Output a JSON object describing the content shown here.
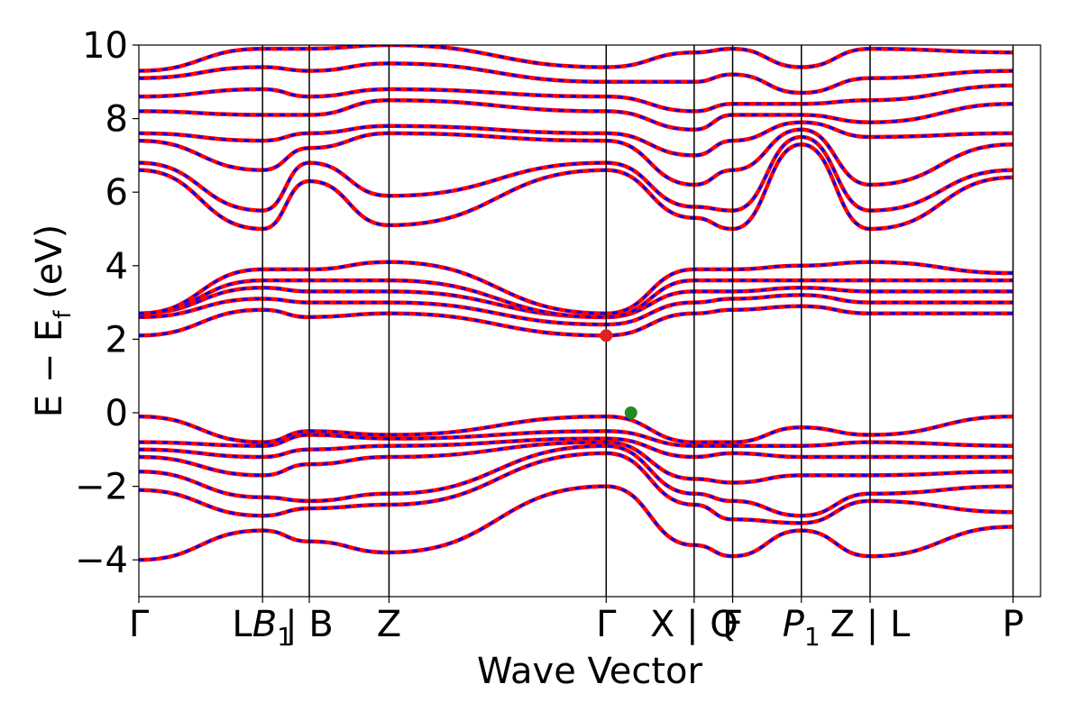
{
  "chart_data": {
    "type": "line",
    "xlabel": "Wave Vector",
    "ylabel": "E − E",
    "ylabel_sub": "f",
    "ylabel_unit": "(eV)",
    "ylim": [
      -5,
      10
    ],
    "y_ticks": [
      -4,
      -2,
      0,
      2,
      4,
      6,
      8,
      10
    ],
    "y_tick_labels": [
      "−4",
      "−2",
      "0",
      "2",
      "4",
      "6",
      "8",
      "10"
    ],
    "x_range": [
      0,
      3.28
    ],
    "kpoints": [
      {
        "x": 0.0,
        "label": "Γ"
      },
      {
        "x": 0.45,
        "label": "L|B",
        "main": "L",
        "italic": "B",
        "sub": "1"
      },
      {
        "x": 0.62,
        "label": "| B"
      },
      {
        "x": 0.91,
        "label": "Z"
      },
      {
        "x": 1.7,
        "label": "Γ"
      },
      {
        "x": 2.02,
        "label": "X | Q"
      },
      {
        "x": 2.16,
        "label": "F"
      },
      {
        "x": 2.41,
        "label": "P1",
        "italic": "P",
        "sub": "1"
      },
      {
        "x": 2.66,
        "label": "Z | L"
      },
      {
        "x": 3.18,
        "label": "P"
      }
    ],
    "segments": [
      [
        0.0,
        0.45
      ],
      [
        0.45,
        0.62
      ],
      [
        0.62,
        0.91
      ],
      [
        0.91,
        1.7
      ],
      [
        1.7,
        2.02
      ],
      [
        2.02,
        2.16
      ],
      [
        2.16,
        2.41
      ],
      [
        2.41,
        2.66
      ],
      [
        2.66,
        3.18
      ]
    ],
    "series": [
      {
        "color": "#ff0000",
        "style": "solid"
      },
      {
        "color": "#0000ff",
        "style": "dashed"
      }
    ],
    "markers": [
      {
        "x": 1.7,
        "y": 2.1,
        "color": "#dd2222"
      },
      {
        "x": 1.79,
        "y": 0.0,
        "color": "#228b22"
      }
    ],
    "bands": [
      {
        "Γ": -4.0,
        "L|B": -3.2,
        "| B": -3.5,
        "Z": -3.8,
        "Γ_2": -2.0,
        "X | Q": -3.6,
        "F": -3.9,
        "P1": -3.2,
        "Z | L": -3.9,
        "P": -3.1
      },
      {
        "Γ": -2.1,
        "L|B": -2.8,
        "| B": -2.6,
        "Z": -2.5,
        "Γ_2": -1.1,
        "X | Q": -2.5,
        "F": -2.9,
        "P1": -3.0,
        "Z | L": -2.4,
        "P": -2.7
      },
      {
        "Γ": -1.6,
        "L|B": -2.3,
        "| B": -2.4,
        "Z": -2.2,
        "Γ_2": -0.9,
        "X | Q": -2.2,
        "F": -2.4,
        "P1": -2.8,
        "Z | L": -2.2,
        "P": -2.0
      },
      {
        "Γ": -1.2,
        "L|B": -1.7,
        "| B": -1.4,
        "Z": -1.2,
        "Γ_2": -0.8,
        "X | Q": -1.8,
        "F": -1.9,
        "P1": -1.7,
        "Z | L": -1.7,
        "P": -1.6
      },
      {
        "Γ": -1.0,
        "L|B": -1.2,
        "| B": -1.0,
        "Z": -0.9,
        "Γ_2": -0.7,
        "X | Q": -1.2,
        "F": -1.1,
        "P1": -1.2,
        "Z | L": -1.2,
        "P": -1.2
      },
      {
        "Γ": -0.8,
        "L|B": -0.9,
        "| B": -0.6,
        "Z": -0.7,
        "Γ_2": -0.5,
        "X | Q": -0.9,
        "F": -0.9,
        "P1": -0.9,
        "Z | L": -0.8,
        "P": -0.9
      },
      {
        "Γ": -0.1,
        "L|B": -0.8,
        "| B": -0.5,
        "Z": -0.6,
        "Γ_2": -0.1,
        "X | Q": -0.8,
        "F": -0.8,
        "P1": -0.4,
        "Z | L": -0.6,
        "P": -0.1
      },
      {
        "Γ": 2.1,
        "L|B": 2.8,
        "| B": 2.6,
        "Z": 2.7,
        "Γ_2": 2.1,
        "X | Q": 2.7,
        "F": 2.8,
        "P1": 2.9,
        "Z | L": 2.7,
        "P": 2.7
      },
      {
        "Γ": 2.6,
        "L|B": 3.1,
        "| B": 3.0,
        "Z": 3.0,
        "Γ_2": 2.4,
        "X | Q": 3.0,
        "F": 3.1,
        "P1": 3.2,
        "Z | L": 3.0,
        "P": 3.0
      },
      {
        "Γ": 2.7,
        "L|B": 3.4,
        "| B": 3.3,
        "Z": 3.3,
        "Γ_2": 2.6,
        "X | Q": 3.3,
        "F": 3.3,
        "P1": 3.4,
        "Z | L": 3.3,
        "P": 3.3
      },
      {
        "Γ": 2.7,
        "L|B": 3.6,
        "| B": 3.6,
        "Z": 3.6,
        "Γ_2": 2.6,
        "X | Q": 3.6,
        "F": 3.6,
        "P1": 3.6,
        "Z | L": 3.6,
        "P": 3.6
      },
      {
        "Γ": 2.7,
        "L|B": 3.9,
        "| B": 3.9,
        "Z": 4.1,
        "Γ_2": 2.7,
        "X | Q": 3.9,
        "F": 3.9,
        "P1": 4.0,
        "Z | L": 4.1,
        "P": 3.8
      },
      {
        "Γ": 6.6,
        "L|B": 5.0,
        "| B": 6.3,
        "Z": 5.1,
        "Γ_2": 6.6,
        "X | Q": 5.3,
        "F": 5.0,
        "P1": 7.3,
        "Z | L": 5.0,
        "P": 6.4
      },
      {
        "Γ": 6.8,
        "L|B": 5.5,
        "| B": 6.8,
        "Z": 5.9,
        "Γ_2": 6.8,
        "X | Q": 5.6,
        "F": 5.5,
        "P1": 7.5,
        "Z | L": 5.5,
        "P": 6.6
      },
      {
        "Γ": 7.4,
        "L|B": 6.6,
        "| B": 7.2,
        "Z": 7.6,
        "Γ_2": 7.4,
        "X | Q": 6.2,
        "F": 6.6,
        "P1": 7.7,
        "Z | L": 6.2,
        "P": 7.3
      },
      {
        "Γ": 7.6,
        "L|B": 7.4,
        "| B": 7.6,
        "Z": 7.8,
        "Γ_2": 7.6,
        "X | Q": 7.0,
        "F": 7.4,
        "P1": 7.9,
        "Z | L": 7.5,
        "P": 7.6
      },
      {
        "Γ": 8.2,
        "L|B": 8.1,
        "| B": 8.1,
        "Z": 8.5,
        "Γ_2": 8.2,
        "X | Q": 7.7,
        "F": 8.1,
        "P1": 8.1,
        "Z | L": 7.9,
        "P": 8.4
      },
      {
        "Γ": 8.6,
        "L|B": 8.8,
        "| B": 8.6,
        "Z": 8.8,
        "Γ_2": 8.6,
        "X | Q": 8.2,
        "F": 8.4,
        "P1": 8.4,
        "Z | L": 8.5,
        "P": 8.9
      },
      {
        "Γ": 9.1,
        "L|B": 9.4,
        "| B": 9.3,
        "Z": 9.5,
        "Γ_2": 9.0,
        "X | Q": 9.0,
        "F": 9.2,
        "P1": 8.7,
        "Z | L": 9.1,
        "P": 9.3
      },
      {
        "Γ": 9.3,
        "L|B": 9.9,
        "| B": 9.9,
        "Z": 10.0,
        "Γ_2": 9.4,
        "X | Q": 9.8,
        "F": 9.9,
        "P1": 9.4,
        "Z | L": 9.9,
        "P": 9.8
      }
    ]
  }
}
